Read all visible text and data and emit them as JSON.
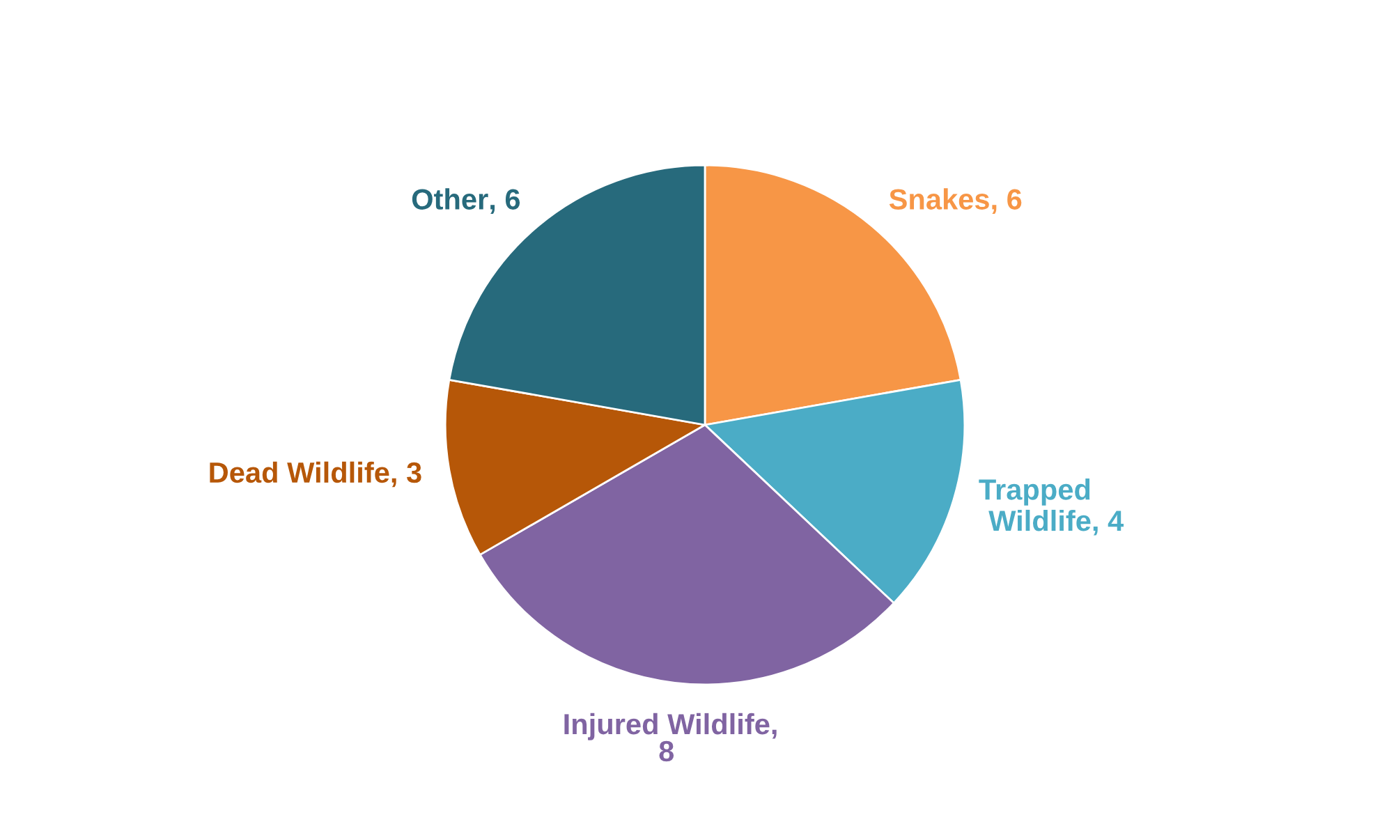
{
  "chart_data": {
    "type": "pie",
    "categories": [
      "Snakes",
      "Trapped Wildlife",
      "Injured Wildlife",
      "Dead Wildlife",
      "Other"
    ],
    "values": [
      6,
      4,
      8,
      3,
      6
    ],
    "colors": [
      "#f79646",
      "#4bacc6",
      "#8064a2",
      "#b65708",
      "#276a7c"
    ],
    "value_labels": [
      ", 6",
      ", 4",
      ", 8",
      ", 3",
      ", 6"
    ],
    "legend": false
  }
}
